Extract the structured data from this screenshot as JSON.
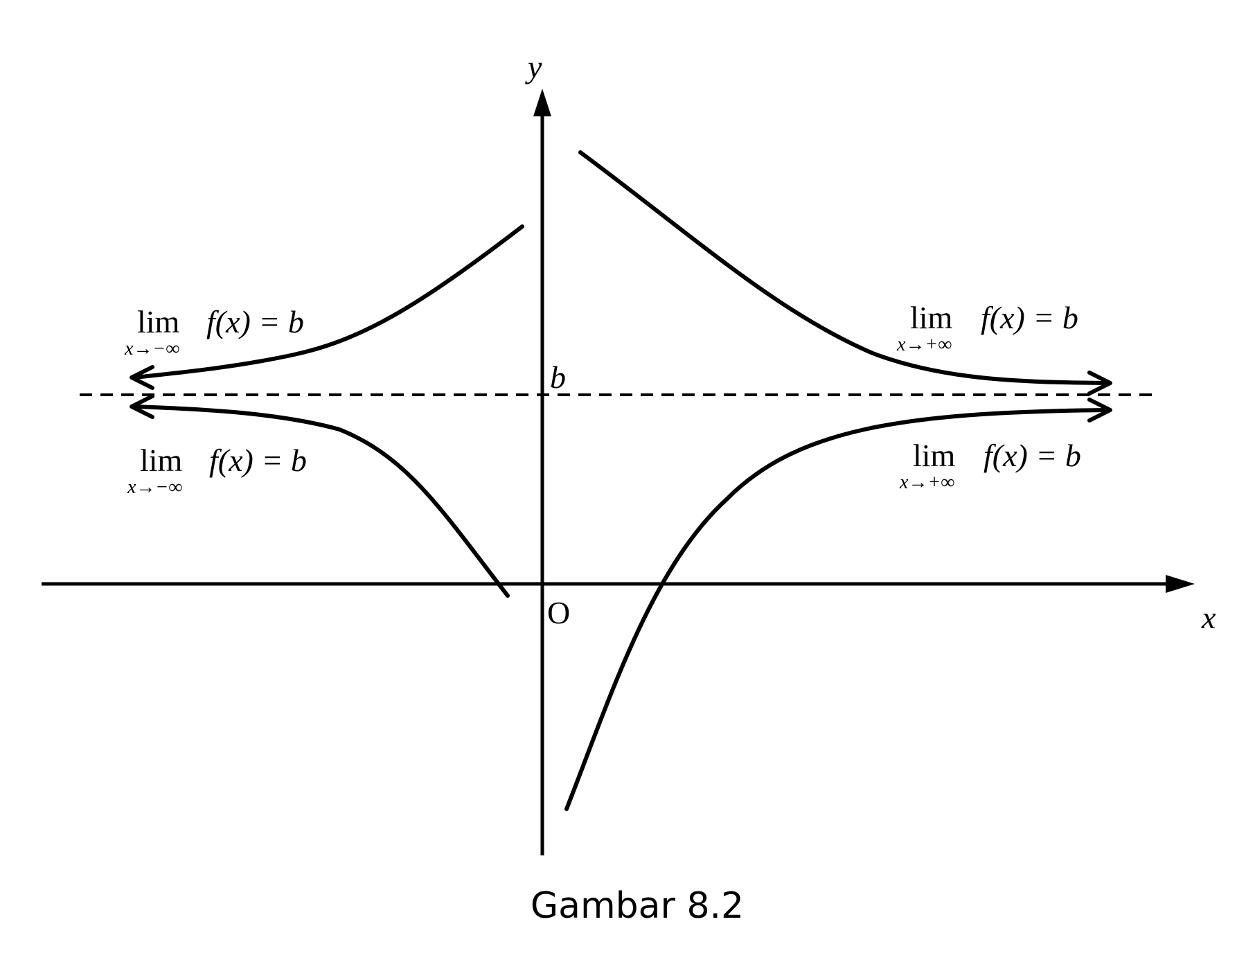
{
  "axes": {
    "x_label": "x",
    "y_label": "y",
    "origin_label": "O"
  },
  "asymptote": {
    "label": "b"
  },
  "limits": {
    "upper_left": {
      "lim": "lim",
      "sub": "x→−∞",
      "expr": "f(x) = b"
    },
    "lower_left": {
      "lim": "lim",
      "sub": "x→−∞",
      "expr": "f(x) = b"
    },
    "upper_right": {
      "lim": "lim",
      "sub": "x→+∞",
      "expr": "f(x) = b"
    },
    "lower_right": {
      "lim": "lim",
      "sub": "x→+∞",
      "expr": "f(x) = b"
    }
  },
  "caption": "Gambar 8.2"
}
